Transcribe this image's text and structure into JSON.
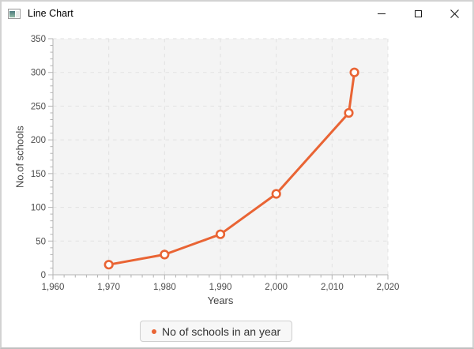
{
  "window": {
    "title": "Line Chart",
    "controls": [
      {
        "name": "minimize",
        "label": "Minimize"
      },
      {
        "name": "maximize",
        "label": "Maximize"
      },
      {
        "name": "close",
        "label": "Close"
      }
    ]
  },
  "chart_data": {
    "type": "line",
    "title": "",
    "xlabel": "Years",
    "ylabel": "No.of schools",
    "x": [
      1970,
      1980,
      1990,
      2000,
      2013,
      2014
    ],
    "series": [
      {
        "name": "No of schools in an year",
        "color": "#e96434",
        "values": [
          15,
          30,
          60,
          120,
          240,
          300
        ]
      }
    ],
    "xlim": [
      1960,
      2020
    ],
    "ylim": [
      0,
      350
    ],
    "x_tick_values": [
      1960,
      1970,
      1980,
      1990,
      2000,
      2010,
      2020
    ],
    "x_tick_labels": [
      "1,960",
      "1,970",
      "1,980",
      "1,990",
      "2,000",
      "2,010",
      "2,020"
    ],
    "y_tick_values": [
      0,
      50,
      100,
      150,
      200,
      250,
      300,
      350
    ],
    "y_tick_labels": [
      "0",
      "50",
      "100",
      "150",
      "200",
      "250",
      "300",
      "350"
    ],
    "x_minor_step": 2,
    "y_minor_step": 10,
    "grid": true,
    "legend_position": "bottom",
    "plot_bg": "#f4f4f4",
    "grid_color": "#e1e1e1",
    "axis_color": "#b3b3b3",
    "symbol_fill": "#ffffff"
  },
  "legend": {
    "label": "No of schools in an year",
    "marker_color": "#e96434"
  }
}
